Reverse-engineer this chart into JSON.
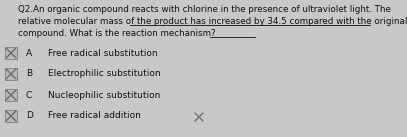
{
  "title_line1": "Q2.An organic compound reacts with chlorine in the presence of ultraviolet light. The",
  "title_line2": "relative molecular mass of the product has increased by 34.5 compared with the original",
  "title_line3": "compound. What is the reaction mechanism?",
  "options": [
    {
      "letter": "A",
      "text": "Free radical substitution"
    },
    {
      "letter": "B",
      "text": "Electrophilic substitution"
    },
    {
      "letter": "C",
      "text": "Nucleophilic substitution"
    },
    {
      "letter": "D",
      "text": "Free radical addition"
    }
  ],
  "background_color": "#c8c8c8",
  "text_color": "#111111",
  "font_size_question": 6.3,
  "font_size_options": 6.5,
  "cross_color": "#666666",
  "box_edge_color": "#888888",
  "box_face_color": "#b8b8b8",
  "underline_color": "#111111",
  "extra_cross_color": "#777777"
}
